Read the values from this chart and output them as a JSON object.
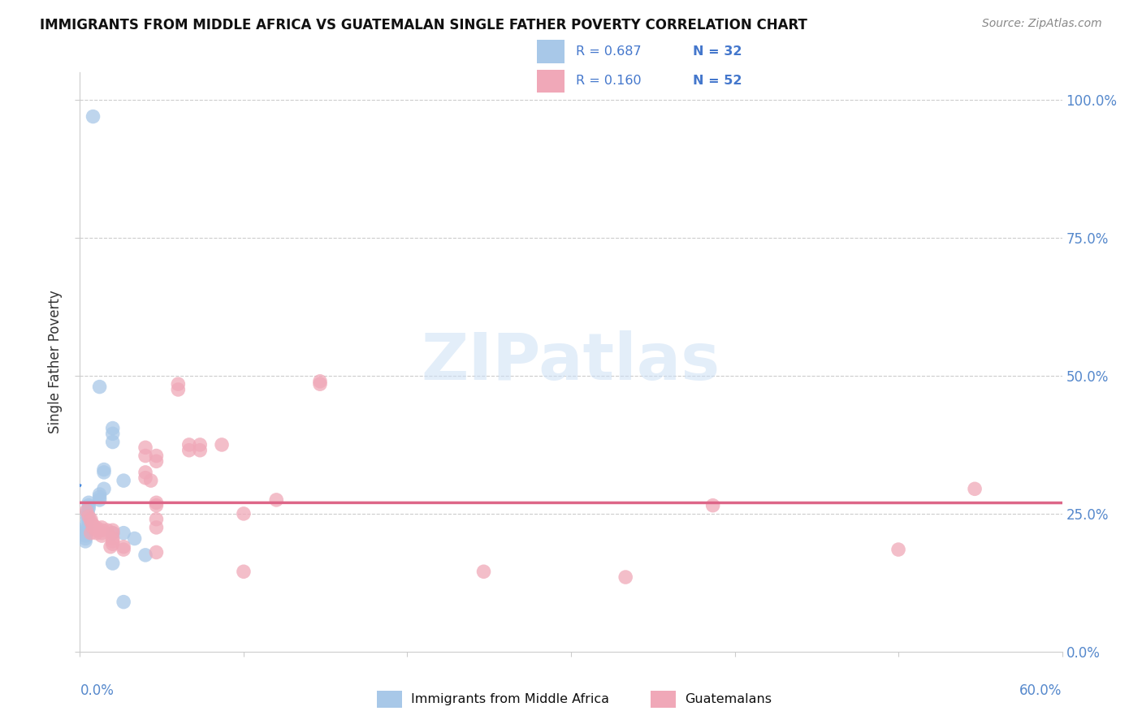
{
  "title": "IMMIGRANTS FROM MIDDLE AFRICA VS GUATEMALAN SINGLE FATHER POVERTY CORRELATION CHART",
  "source": "Source: ZipAtlas.com",
  "ylabel": "Single Father Poverty",
  "right_axis_labels": [
    "100.0%",
    "75.0%",
    "50.0%",
    "25.0%",
    "0.0%"
  ],
  "legend_label1": "Immigrants from Middle Africa",
  "legend_label2": "Guatemalans",
  "R1": "0.687",
  "N1": "32",
  "R2": "0.160",
  "N2": "52",
  "blue_color": "#a8c8e8",
  "pink_color": "#f0a8b8",
  "blue_line_color": "#4488dd",
  "pink_line_color": "#dd6688",
  "blue_scatter": [
    [
      0.0012,
      0.97
    ],
    [
      0.0018,
      0.48
    ],
    [
      0.003,
      0.405
    ],
    [
      0.003,
      0.395
    ],
    [
      0.003,
      0.38
    ],
    [
      0.0022,
      0.33
    ],
    [
      0.0022,
      0.325
    ],
    [
      0.0022,
      0.295
    ],
    [
      0.0018,
      0.285
    ],
    [
      0.0018,
      0.28
    ],
    [
      0.0018,
      0.275
    ],
    [
      0.0008,
      0.27
    ],
    [
      0.0008,
      0.265
    ],
    [
      0.0008,
      0.26
    ],
    [
      0.0007,
      0.255
    ],
    [
      0.0007,
      0.25
    ],
    [
      0.0007,
      0.245
    ],
    [
      0.0007,
      0.24
    ],
    [
      0.0006,
      0.23
    ],
    [
      0.0006,
      0.225
    ],
    [
      0.0006,
      0.22
    ],
    [
      0.0006,
      0.215
    ],
    [
      0.0005,
      0.21
    ],
    [
      0.0005,
      0.205
    ],
    [
      0.0005,
      0.2
    ],
    [
      0.003,
      0.215
    ],
    [
      0.004,
      0.31
    ],
    [
      0.004,
      0.215
    ],
    [
      0.005,
      0.205
    ],
    [
      0.006,
      0.175
    ],
    [
      0.003,
      0.16
    ],
    [
      0.004,
      0.09
    ]
  ],
  "pink_scatter": [
    [
      0.0006,
      0.255
    ],
    [
      0.0008,
      0.245
    ],
    [
      0.001,
      0.24
    ],
    [
      0.001,
      0.235
    ],
    [
      0.0012,
      0.23
    ],
    [
      0.0012,
      0.225
    ],
    [
      0.0015,
      0.225
    ],
    [
      0.0015,
      0.22
    ],
    [
      0.0015,
      0.215
    ],
    [
      0.001,
      0.215
    ],
    [
      0.002,
      0.225
    ],
    [
      0.002,
      0.22
    ],
    [
      0.002,
      0.215
    ],
    [
      0.002,
      0.21
    ],
    [
      0.0025,
      0.22
    ],
    [
      0.003,
      0.22
    ],
    [
      0.003,
      0.215
    ],
    [
      0.003,
      0.205
    ],
    [
      0.003,
      0.2
    ],
    [
      0.003,
      0.195
    ],
    [
      0.0028,
      0.19
    ],
    [
      0.004,
      0.19
    ],
    [
      0.004,
      0.185
    ],
    [
      0.006,
      0.37
    ],
    [
      0.006,
      0.355
    ],
    [
      0.006,
      0.325
    ],
    [
      0.006,
      0.315
    ],
    [
      0.0065,
      0.31
    ],
    [
      0.007,
      0.355
    ],
    [
      0.007,
      0.345
    ],
    [
      0.007,
      0.27
    ],
    [
      0.007,
      0.265
    ],
    [
      0.007,
      0.24
    ],
    [
      0.007,
      0.225
    ],
    [
      0.007,
      0.18
    ],
    [
      0.009,
      0.485
    ],
    [
      0.009,
      0.475
    ],
    [
      0.01,
      0.375
    ],
    [
      0.01,
      0.365
    ],
    [
      0.011,
      0.375
    ],
    [
      0.011,
      0.365
    ],
    [
      0.013,
      0.375
    ],
    [
      0.015,
      0.25
    ],
    [
      0.015,
      0.145
    ],
    [
      0.018,
      0.275
    ],
    [
      0.022,
      0.485
    ],
    [
      0.022,
      0.49
    ],
    [
      0.037,
      0.145
    ],
    [
      0.05,
      0.135
    ],
    [
      0.058,
      0.265
    ],
    [
      0.075,
      0.185
    ],
    [
      0.082,
      0.295
    ]
  ],
  "xlim": [
    0.0,
    0.09
  ],
  "ylim": [
    0.0,
    1.05
  ],
  "x_tick_positions": [
    0.0,
    0.015,
    0.03,
    0.045,
    0.06,
    0.075,
    0.09
  ],
  "y_tick_positions": [
    0.0,
    0.25,
    0.5,
    0.75,
    1.0
  ]
}
